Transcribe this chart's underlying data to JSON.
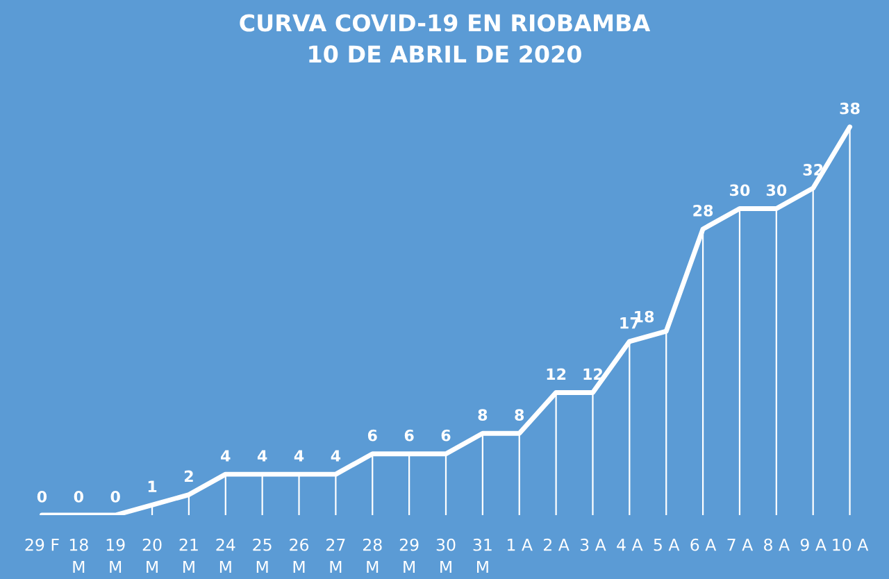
{
  "chart_data": {
    "type": "line",
    "title": "CURVA COVID-19 EN RIOBAMBA\n10 DE ABRIL DE 2020",
    "categories": [
      "29 F",
      "18\nM",
      "19\nM",
      "20\nM",
      "21\nM",
      "24\nM",
      "25\nM",
      "26\nM",
      "27\nM",
      "28\nM",
      "29\nM",
      "30\nM",
      "31\nM",
      "1 A",
      "2 A",
      "3 A",
      "4 A",
      "5 A",
      "6 A",
      "7 A",
      "8 A",
      "9 A",
      "10 A"
    ],
    "series": [
      {
        "color": "#ffffff",
        "values": [
          0,
          0,
          0,
          1,
          2,
          4,
          4,
          4,
          4,
          6,
          6,
          6,
          8,
          8,
          12,
          12,
          17,
          18,
          28,
          30,
          30,
          32,
          38
        ]
      }
    ],
    "data_labels": true,
    "line_style": "solid",
    "grid": "x",
    "legend": false
  }
}
